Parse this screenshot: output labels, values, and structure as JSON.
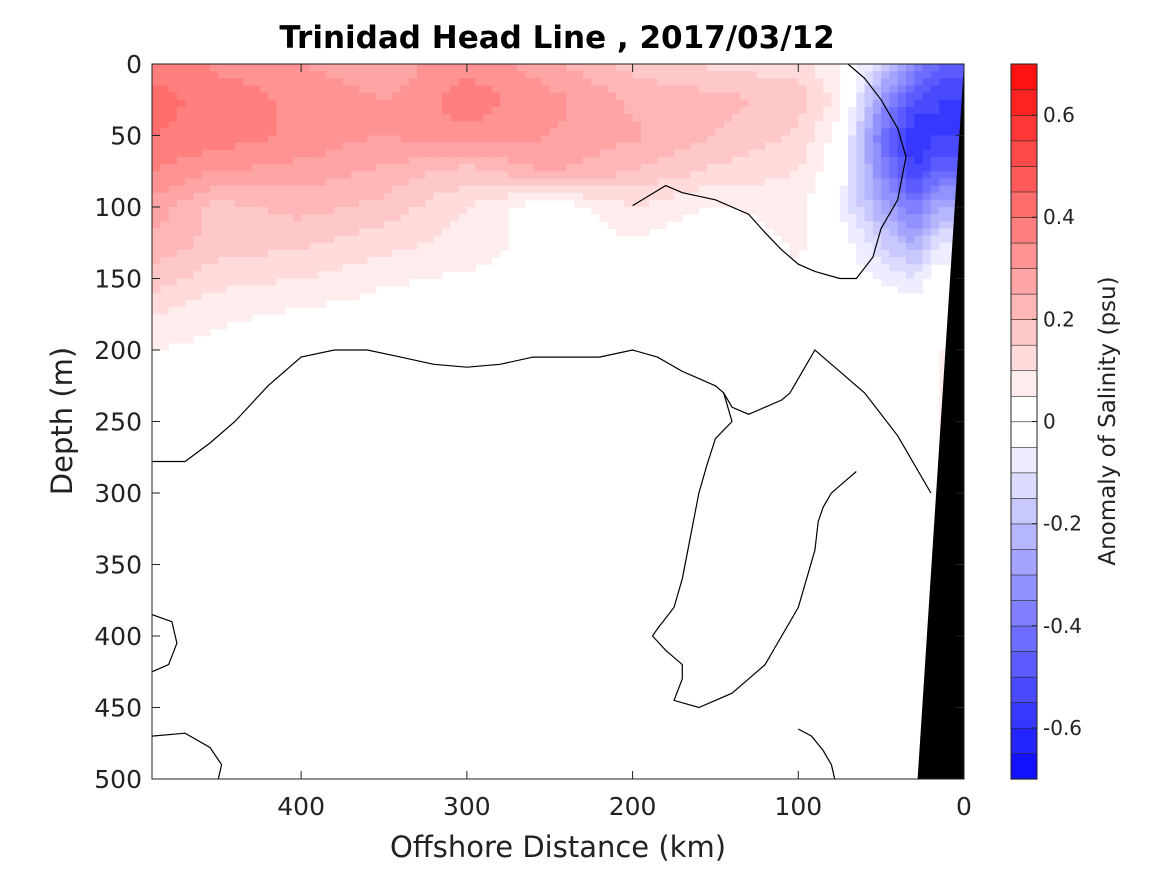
{
  "chart_data": {
    "type": "heatmap",
    "title": "Trinidad Head Line , 2017/03/12",
    "xlabel": "Offshore Distance (km)",
    "ylabel": "Depth (m)",
    "xlim": [
      490,
      0
    ],
    "ylim": [
      0,
      500
    ],
    "x_ticks": [
      400,
      300,
      200,
      100,
      0
    ],
    "y_ticks": [
      0,
      50,
      100,
      150,
      200,
      250,
      300,
      350,
      400,
      450,
      500
    ],
    "colorbar": {
      "label": "Anomaly of Salinity (psu)",
      "range": [
        -0.7,
        0.7
      ],
      "level_step": 0.05,
      "ticks": [
        -0.6,
        -0.4,
        -0.2,
        0,
        0.2,
        0.4,
        0.6
      ],
      "negative_color": "#0000ff",
      "positive_color": "#ff0000",
      "zero_color": "#ffffff"
    },
    "bathymetry_color": "#000000",
    "field": {
      "x": [
        490,
        450,
        400,
        350,
        300,
        250,
        200,
        150,
        100,
        75,
        50,
        30,
        15
      ],
      "depth": [
        0,
        25,
        50,
        75,
        100,
        125,
        150,
        175,
        200,
        250,
        300,
        350,
        400,
        450,
        500
      ],
      "values": [
        [
          0.38,
          0.34,
          0.3,
          0.26,
          0.34,
          0.26,
          0.18,
          0.14,
          0.12,
          0.05,
          -0.15,
          -0.35,
          -0.45
        ],
        [
          0.42,
          0.38,
          0.34,
          0.3,
          0.38,
          0.32,
          0.24,
          0.22,
          0.18,
          0.08,
          -0.3,
          -0.5,
          -0.55
        ],
        [
          0.4,
          0.38,
          0.34,
          0.3,
          0.34,
          0.3,
          0.26,
          0.2,
          0.14,
          0.02,
          -0.4,
          -0.6,
          -0.55
        ],
        [
          0.35,
          0.3,
          0.28,
          0.24,
          0.18,
          0.26,
          0.2,
          0.14,
          0.1,
          0.0,
          -0.35,
          -0.55,
          -0.45
        ],
        [
          0.28,
          0.18,
          0.22,
          0.18,
          0.1,
          0.0,
          0.1,
          0.04,
          0.08,
          -0.05,
          -0.25,
          -0.4,
          -0.25
        ],
        [
          0.24,
          0.18,
          0.16,
          0.12,
          0.08,
          0.02,
          0.04,
          0.0,
          0.06,
          0.0,
          -0.15,
          -0.25,
          -0.1
        ],
        [
          0.18,
          0.12,
          0.1,
          0.06,
          0.04,
          0.04,
          0.02,
          0.0,
          0.04,
          0.0,
          -0.05,
          -0.1,
          0.0
        ],
        [
          0.1,
          0.06,
          0.04,
          0.02,
          0.02,
          0.02,
          0.0,
          0.0,
          0.02,
          0.0,
          0.0,
          0.0,
          0.04
        ],
        [
          0.05,
          0.03,
          0.02,
          0.0,
          0.0,
          0.0,
          0.0,
          0.0,
          0.0,
          0.0,
          0.0,
          0.02,
          0.05
        ],
        [
          0.0,
          0.0,
          0.0,
          0.0,
          0.0,
          0.0,
          0.0,
          0.0,
          0.0,
          0.0,
          0.0,
          0.02,
          0.05
        ],
        [
          0.0,
          0.0,
          0.0,
          0.0,
          -0.02,
          -0.03,
          0.0,
          0.0,
          0.0,
          0.0,
          0.0,
          0.03,
          0.05
        ],
        [
          0.0,
          0.0,
          0.0,
          -0.03,
          -0.03,
          -0.03,
          -0.02,
          0.0,
          0.0,
          0.0,
          0.0,
          0.04,
          0.05
        ],
        [
          0.0,
          0.0,
          0.0,
          -0.03,
          -0.03,
          -0.03,
          -0.03,
          0.0,
          0.0,
          0.0,
          0.0,
          0.03,
          0.05
        ],
        [
          0.0,
          0.0,
          0.0,
          -0.03,
          -0.03,
          -0.03,
          -0.02,
          0.0,
          0.0,
          0.0,
          0.0,
          0.02,
          0.04
        ],
        [
          0.0,
          0.0,
          0.0,
          -0.02,
          -0.03,
          -0.03,
          -0.02,
          0.0,
          0.0,
          0.0,
          0.0,
          0.02,
          0.04
        ]
      ]
    },
    "zero_contours": [
      {
        "name": "main",
        "points": [
          [
            490,
            278
          ],
          [
            470,
            278
          ],
          [
            455,
            265
          ],
          [
            440,
            250
          ],
          [
            420,
            225
          ],
          [
            400,
            205
          ],
          [
            380,
            200
          ],
          [
            360,
            200
          ],
          [
            340,
            205
          ],
          [
            320,
            210
          ],
          [
            300,
            212
          ],
          [
            280,
            210
          ],
          [
            260,
            205
          ],
          [
            240,
            205
          ],
          [
            220,
            205
          ],
          [
            200,
            200
          ],
          [
            185,
            205
          ],
          [
            170,
            215
          ],
          [
            160,
            220
          ],
          [
            150,
            225
          ],
          [
            145,
            230
          ],
          [
            140,
            240
          ],
          [
            130,
            245
          ],
          [
            120,
            240
          ],
          [
            110,
            235
          ],
          [
            105,
            230
          ],
          [
            100,
            220
          ],
          [
            95,
            210
          ],
          [
            90,
            200
          ],
          [
            80,
            210
          ],
          [
            70,
            220
          ],
          [
            60,
            230
          ],
          [
            50,
            245
          ],
          [
            40,
            260
          ],
          [
            30,
            280
          ],
          [
            20,
            300
          ]
        ]
      },
      {
        "name": "shelf-east",
        "points": [
          [
            145,
            230
          ],
          [
            140,
            250
          ],
          [
            150,
            262
          ],
          [
            155,
            280
          ],
          [
            160,
            300
          ],
          [
            165,
            330
          ],
          [
            170,
            360
          ],
          [
            175,
            380
          ],
          [
            185,
            395
          ],
          [
            188,
            400
          ],
          [
            180,
            410
          ],
          [
            170,
            420
          ],
          [
            170,
            430
          ],
          [
            175,
            445
          ],
          [
            160,
            450
          ],
          [
            150,
            445
          ],
          [
            140,
            440
          ],
          [
            130,
            430
          ],
          [
            120,
            420
          ],
          [
            110,
            400
          ],
          [
            100,
            380
          ],
          [
            95,
            360
          ],
          [
            90,
            340
          ],
          [
            88,
            320
          ],
          [
            85,
            310
          ],
          [
            80,
            300
          ],
          [
            75,
            295
          ],
          [
            70,
            290
          ],
          [
            65,
            285
          ]
        ]
      },
      {
        "name": "deep-east",
        "points": [
          [
            100,
            465
          ],
          [
            92,
            470
          ],
          [
            85,
            480
          ],
          [
            80,
            490
          ],
          [
            78,
            500
          ]
        ]
      },
      {
        "name": "offshore-west",
        "points": [
          [
            490,
            385
          ],
          [
            478,
            390
          ],
          [
            475,
            405
          ],
          [
            480,
            420
          ],
          [
            490,
            425
          ]
        ]
      },
      {
        "name": "bottom-west",
        "points": [
          [
            490,
            470
          ],
          [
            470,
            468
          ],
          [
            455,
            478
          ],
          [
            448,
            490
          ],
          [
            450,
            500
          ]
        ]
      },
      {
        "name": "coastal",
        "points": [
          [
            70,
            0
          ],
          [
            60,
            10
          ],
          [
            50,
            25
          ],
          [
            40,
            45
          ],
          [
            35,
            65
          ],
          [
            40,
            95
          ],
          [
            50,
            115
          ],
          [
            55,
            135
          ],
          [
            65,
            150
          ],
          [
            75,
            150
          ],
          [
            90,
            145
          ],
          [
            100,
            140
          ],
          [
            110,
            130
          ],
          [
            120,
            118
          ],
          [
            130,
            105
          ],
          [
            150,
            95
          ],
          [
            170,
            90
          ],
          [
            180,
            85
          ],
          [
            190,
            92
          ],
          [
            200,
            99
          ]
        ]
      }
    ]
  }
}
